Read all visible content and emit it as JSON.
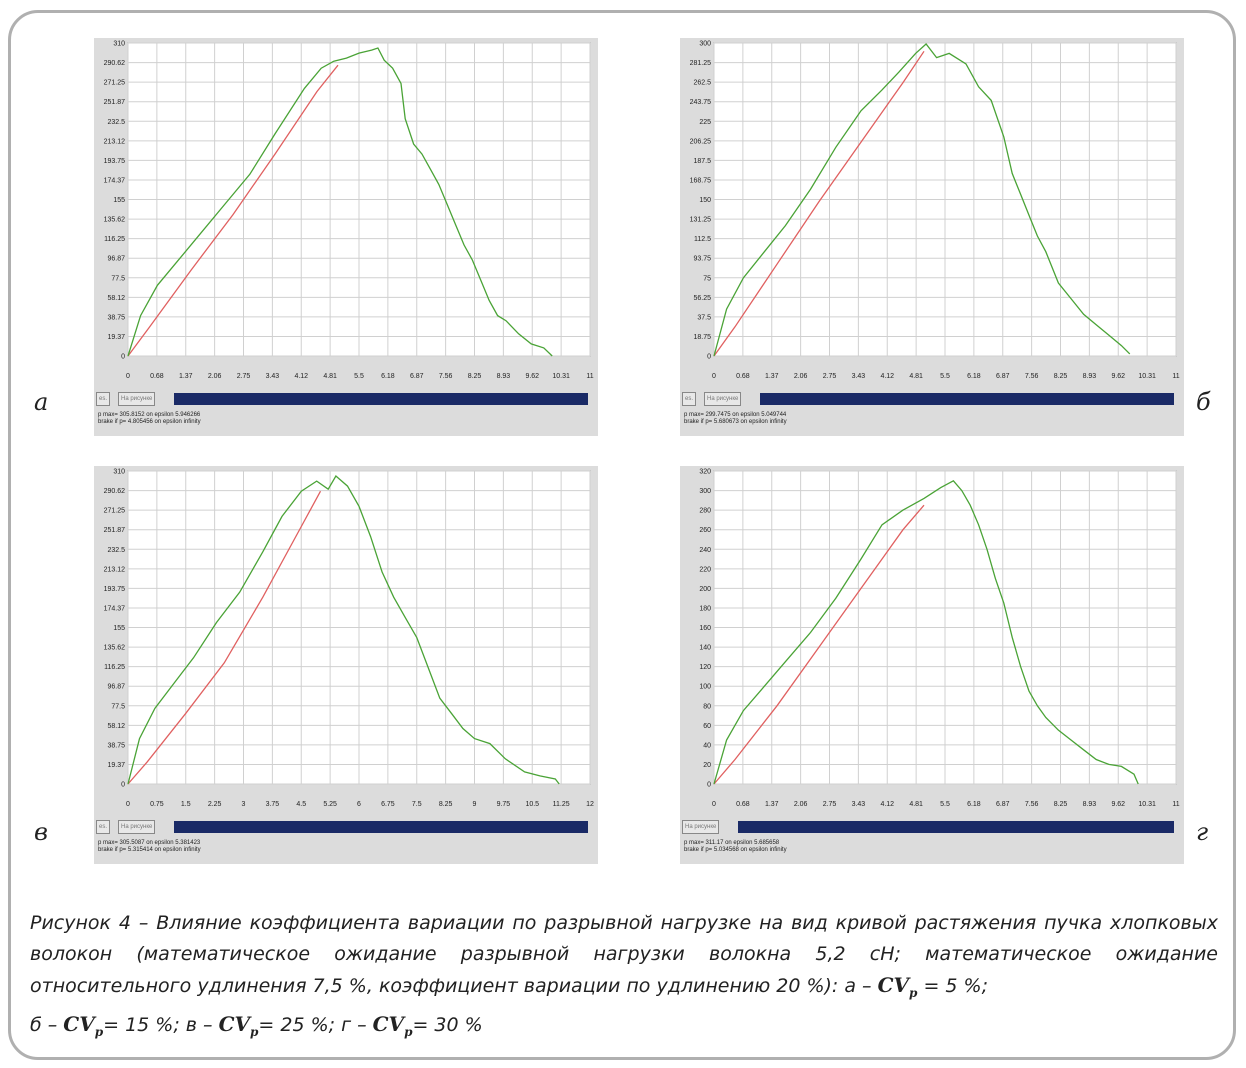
{
  "chart_data": [
    {
      "type": "line",
      "panel_letter": "а",
      "y_ticks": [
        "0",
        "19.37",
        "38.75",
        "58.12",
        "77.5",
        "96.87",
        "116.25",
        "135.62",
        "155",
        "174.37",
        "193.75",
        "213.12",
        "232.5",
        "251.87",
        "271.25",
        "290.62",
        "310"
      ],
      "x_ticks": [
        "0",
        "0.68",
        "1.37",
        "2.06",
        "2.75",
        "3.43",
        "4.12",
        "4.81",
        "5.5",
        "6.18",
        "6.87",
        "7.56",
        "8.25",
        "8.93",
        "9.62",
        "10.31",
        "11"
      ],
      "xlim": [
        0,
        11
      ],
      "ylim": [
        0,
        310
      ],
      "buttons": [
        "es.",
        "На рисунке"
      ],
      "status_lines": [
        "p max= 305.8152 on epsilon 5.946266",
        "brake if p= 4.805456 on epsilon infinity"
      ],
      "series": [
        {
          "color": "#4aa336",
          "x": [
            0,
            0.3,
            0.7,
            1.2,
            1.7,
            2.3,
            2.9,
            3.5,
            4.2,
            4.6,
            4.9,
            5.2,
            5.5,
            5.8,
            5.95,
            6.1,
            6.3,
            6.5,
            6.6,
            6.8,
            7.0,
            7.2,
            7.4,
            7.6,
            7.8,
            8.0,
            8.2,
            8.4,
            8.6,
            8.8,
            9.0,
            9.3,
            9.6,
            9.9,
            10.1
          ],
          "y": [
            0,
            40,
            70,
            95,
            120,
            150,
            180,
            220,
            265,
            285,
            292,
            295,
            300,
            303,
            305,
            293,
            285,
            270,
            235,
            210,
            200,
            185,
            170,
            150,
            130,
            110,
            95,
            75,
            55,
            40,
            35,
            22,
            12,
            8,
            0
          ]
        },
        {
          "color": "#e06060",
          "x": [
            0,
            0.5,
            1.5,
            2.5,
            3.5,
            4.5,
            5.0
          ],
          "y": [
            0,
            28,
            85,
            140,
            200,
            262,
            288
          ]
        }
      ]
    },
    {
      "type": "line",
      "panel_letter": "б",
      "y_ticks": [
        "0",
        "18.75",
        "37.5",
        "56.25",
        "75",
        "93.75",
        "112.5",
        "131.25",
        "150",
        "168.75",
        "187.5",
        "206.25",
        "225",
        "243.75",
        "262.5",
        "281.25",
        "300"
      ],
      "x_ticks": [
        "0",
        "0.68",
        "1.37",
        "2.06",
        "2.75",
        "3.43",
        "4.12",
        "4.81",
        "5.5",
        "6.18",
        "6.87",
        "7.56",
        "8.25",
        "8.93",
        "9.62",
        "10.31",
        "11"
      ],
      "xlim": [
        0,
        11
      ],
      "ylim": [
        0,
        300
      ],
      "buttons": [
        "es.",
        "На рисунке"
      ],
      "status_lines": [
        "p max= 299.7475 on epsilon 5.049744",
        "brake if p= 5.680673 on epsilon infinity"
      ],
      "series": [
        {
          "color": "#4aa336",
          "x": [
            0,
            0.3,
            0.7,
            1.2,
            1.7,
            2.3,
            2.9,
            3.5,
            4.0,
            4.4,
            4.8,
            5.05,
            5.3,
            5.6,
            6.0,
            6.3,
            6.6,
            6.9,
            7.1,
            7.3,
            7.5,
            7.7,
            7.9,
            8.2,
            8.5,
            8.8,
            9.1,
            9.4,
            9.7,
            9.9
          ],
          "y": [
            0,
            45,
            75,
            100,
            125,
            160,
            200,
            235,
            255,
            272,
            290,
            299,
            286,
            290,
            280,
            258,
            245,
            210,
            175,
            155,
            135,
            115,
            100,
            70,
            55,
            40,
            30,
            20,
            10,
            2
          ]
        },
        {
          "color": "#e06060",
          "x": [
            0,
            0.5,
            1.5,
            2.5,
            3.5,
            4.5,
            5.0
          ],
          "y": [
            0,
            28,
            88,
            148,
            205,
            262,
            292
          ]
        }
      ]
    },
    {
      "type": "line",
      "panel_letter": "в",
      "y_ticks": [
        "0",
        "19.37",
        "38.75",
        "58.12",
        "77.5",
        "96.87",
        "116.25",
        "135.62",
        "155",
        "174.37",
        "193.75",
        "213.12",
        "232.5",
        "251.87",
        "271.25",
        "290.62",
        "310"
      ],
      "x_ticks": [
        "0",
        "0.75",
        "1.5",
        "2.25",
        "3",
        "3.75",
        "4.5",
        "5.25",
        "6",
        "6.75",
        "7.5",
        "8.25",
        "9",
        "9.75",
        "10.5",
        "11.25",
        "12"
      ],
      "xlim": [
        0,
        12
      ],
      "ylim": [
        0,
        310
      ],
      "buttons": [
        "es.",
        "На рисунке"
      ],
      "status_lines": [
        "p max= 305.5087 on epsilon 5.381423",
        "brake if p= 5.315414 on epsilon infinity"
      ],
      "series": [
        {
          "color": "#4aa336",
          "x": [
            0,
            0.3,
            0.7,
            1.2,
            1.7,
            2.3,
            2.9,
            3.5,
            4.0,
            4.5,
            4.9,
            5.2,
            5.4,
            5.7,
            6.0,
            6.3,
            6.6,
            6.9,
            7.2,
            7.5,
            7.8,
            8.1,
            8.4,
            8.7,
            9.0,
            9.4,
            9.8,
            10.3,
            10.7,
            11.1,
            11.2
          ],
          "y": [
            0,
            45,
            75,
            100,
            125,
            160,
            190,
            230,
            265,
            290,
            300,
            292,
            305,
            295,
            275,
            245,
            210,
            185,
            165,
            145,
            115,
            85,
            70,
            55,
            45,
            40,
            25,
            12,
            8,
            5,
            0
          ]
        },
        {
          "color": "#e06060",
          "x": [
            0,
            0.5,
            1.5,
            2.5,
            3.5,
            4.5,
            5.0
          ],
          "y": [
            0,
            22,
            70,
            120,
            185,
            255,
            290
          ]
        }
      ]
    },
    {
      "type": "line",
      "panel_letter": "г",
      "y_ticks": [
        "0",
        "20",
        "40",
        "60",
        "80",
        "100",
        "120",
        "140",
        "160",
        "180",
        "200",
        "220",
        "240",
        "260",
        "280",
        "300",
        "320"
      ],
      "x_ticks": [
        "0",
        "0.68",
        "1.37",
        "2.06",
        "2.75",
        "3.43",
        "4.12",
        "4.81",
        "5.5",
        "6.18",
        "6.87",
        "7.56",
        "8.25",
        "8.93",
        "9.62",
        "10.31",
        "11"
      ],
      "xlim": [
        0,
        11
      ],
      "ylim": [
        0,
        320
      ],
      "buttons": [
        "На рисунке"
      ],
      "status_lines": [
        "p max= 311.17 on epsilon 5.685658",
        "brake if p= 5.034568 on epsilon infinity"
      ],
      "series": [
        {
          "color": "#4aa336",
          "x": [
            0,
            0.3,
            0.7,
            1.2,
            1.7,
            2.3,
            2.9,
            3.5,
            4.0,
            4.5,
            5.0,
            5.4,
            5.7,
            5.9,
            6.1,
            6.3,
            6.5,
            6.7,
            6.9,
            7.1,
            7.3,
            7.5,
            7.7,
            7.9,
            8.2,
            8.5,
            8.8,
            9.1,
            9.4,
            9.7,
            10.0,
            10.1
          ],
          "y": [
            0,
            45,
            75,
            100,
            125,
            155,
            190,
            230,
            265,
            280,
            292,
            303,
            310,
            300,
            285,
            265,
            240,
            210,
            185,
            150,
            120,
            95,
            80,
            68,
            55,
            45,
            35,
            25,
            20,
            18,
            10,
            0
          ]
        },
        {
          "color": "#e06060",
          "x": [
            0,
            0.5,
            1.5,
            2.5,
            3.5,
            4.5,
            5.0
          ],
          "y": [
            0,
            25,
            80,
            140,
            200,
            260,
            285
          ]
        }
      ]
    }
  ],
  "caption": {
    "main": "Рисунок 4 – Влияние коэффициента вариации по разрывной нагрузке на вид кривой растяжения пучка хлопковых волокон (математическое ожидание разрывной нагрузки волокна 5,2 сН; математическое ожидание относительного удлинения 7,5 %, коэффициент вариации по удлинению 20 %): а – ",
    "symbol": "CV",
    "subscript": "р",
    "parts": [
      " = 5 %;",
      "б – ",
      "= 15 %; в – ",
      "= 25 %; г – ",
      "= 30 %"
    ]
  }
}
